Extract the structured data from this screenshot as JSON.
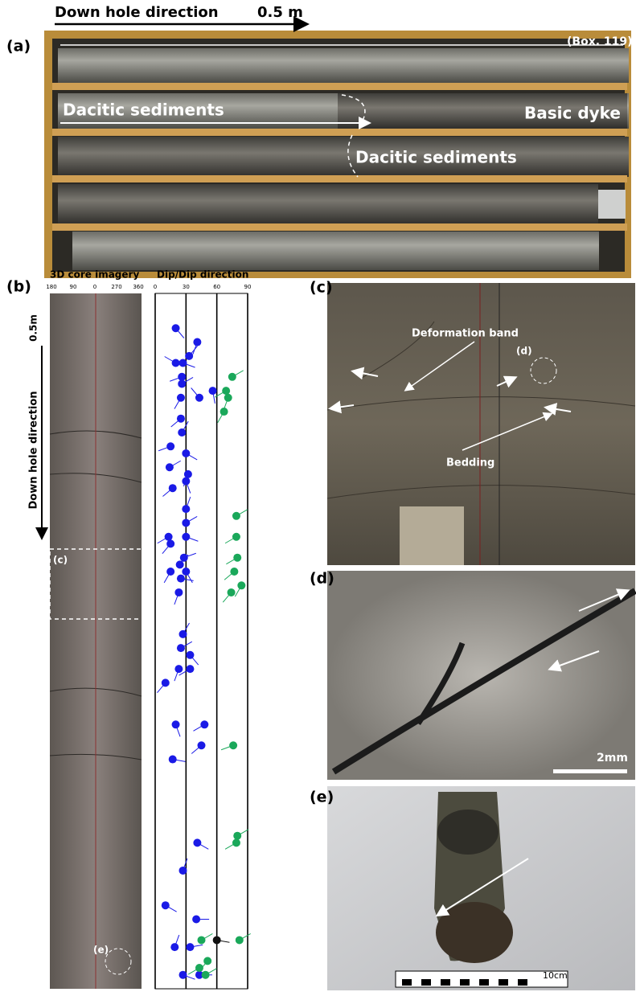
{
  "panel_a": {
    "label": "(a)",
    "direction": "Down hole direction",
    "scale": "0.5 m",
    "box": "(Box. 119)",
    "upper_unit": "Dacitic sediments",
    "dyke": "Basic dyke",
    "lower_unit": "Dacitic sediments"
  },
  "panel_b": {
    "label": "(b)",
    "imagery_title": "3D core imagery",
    "imagery_ticks": [
      "180",
      "90",
      "0",
      "270",
      "360"
    ],
    "tadpole_title": "Dip/Dip direction",
    "scale": "0.5m",
    "direction": "Down hole direction",
    "box_c": "(c)",
    "circle_e": "(e)",
    "tadpoles": {
      "dip_lim": [
        0,
        90
      ],
      "dip_ticks": [
        0,
        30,
        60,
        90
      ],
      "depth_lim": [
        0,
        1
      ],
      "sets": [
        {
          "color": "#1a1ae6",
          "points": [
            [
              20,
              0.05,
              140
            ],
            [
              41,
              0.07,
              200
            ],
            [
              33,
              0.09,
              40
            ],
            [
              20,
              0.1,
              300
            ],
            [
              27,
              0.1,
              110
            ],
            [
              26,
              0.12,
              250
            ],
            [
              26,
              0.13,
              60
            ],
            [
              25,
              0.15,
              210
            ],
            [
              43,
              0.15,
              320
            ],
            [
              56,
              0.14,
              170
            ],
            [
              25,
              0.18,
              230
            ],
            [
              26,
              0.2,
              30
            ],
            [
              15,
              0.22,
              250
            ],
            [
              30,
              0.23,
              120
            ],
            [
              14,
              0.25,
              60
            ],
            [
              32,
              0.26,
              200
            ],
            [
              30,
              0.27,
              160
            ],
            [
              17,
              0.28,
              230
            ],
            [
              30,
              0.31,
              20
            ],
            [
              30,
              0.33,
              60
            ],
            [
              13,
              0.35,
              240
            ],
            [
              30,
              0.35,
              110
            ],
            [
              15,
              0.36,
              220
            ],
            [
              28,
              0.38,
              70
            ],
            [
              24,
              0.39,
              40
            ],
            [
              15,
              0.4,
              210
            ],
            [
              30,
              0.4,
              150
            ],
            [
              25,
              0.41,
              100
            ],
            [
              23,
              0.43,
              200
            ],
            [
              27,
              0.49,
              30
            ],
            [
              25,
              0.51,
              60
            ],
            [
              34,
              0.52,
              140
            ],
            [
              23,
              0.54,
              200
            ],
            [
              34,
              0.54,
              240
            ],
            [
              10,
              0.56,
              220
            ],
            [
              20,
              0.62,
              160
            ],
            [
              48,
              0.62,
              240
            ],
            [
              45,
              0.65,
              230
            ],
            [
              17,
              0.67,
              100
            ],
            [
              41,
              0.79,
              120
            ],
            [
              27,
              0.83,
              20
            ],
            [
              10,
              0.88,
              120
            ],
            [
              40,
              0.9,
              90
            ],
            [
              19,
              0.94,
              20
            ],
            [
              34,
              0.94,
              80
            ],
            [
              27,
              0.98,
              110
            ],
            [
              43,
              0.98,
              90
            ]
          ]
        },
        {
          "color": "#1aa85a",
          "points": [
            [
              75,
              0.12,
              60
            ],
            [
              69,
              0.14,
              240
            ],
            [
              71,
              0.15,
              200
            ],
            [
              67,
              0.17,
              210
            ],
            [
              79,
              0.32,
              60
            ],
            [
              79,
              0.35,
              240
            ],
            [
              80,
              0.38,
              240
            ],
            [
              77,
              0.4,
              230
            ],
            [
              84,
              0.42,
              210
            ],
            [
              74,
              0.43,
              220
            ],
            [
              80,
              0.78,
              60
            ],
            [
              79,
              0.79,
              240
            ],
            [
              76,
              0.65,
              250
            ],
            [
              82,
              0.93,
              60
            ],
            [
              45,
              0.93,
              60
            ],
            [
              51,
              0.96,
              220
            ],
            [
              43,
              0.97,
              240
            ],
            [
              49,
              0.98,
              60
            ]
          ]
        },
        {
          "color": "#111111",
          "points": [
            [
              60,
              0.93,
              100
            ]
          ]
        }
      ]
    }
  },
  "panel_c": {
    "label": "(c)",
    "deformation": "Deformation band",
    "circle": "(d)",
    "bedding": "Bedding"
  },
  "panel_d": {
    "label": "(d)",
    "scale": "2mm"
  },
  "panel_e": {
    "label": "(e)",
    "scale": "10cm"
  }
}
